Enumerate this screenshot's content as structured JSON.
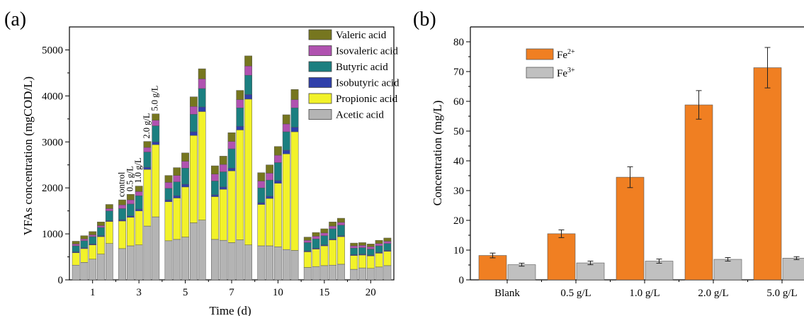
{
  "chart_data": [
    {
      "type": "bar",
      "stacked": true,
      "panel_label": "(a)",
      "xlabel": "Time (d)",
      "ylabel": "VFAs concentration (mgCOD/L)",
      "ylim": [
        0,
        5500
      ],
      "yticks": [
        0,
        1000,
        2000,
        3000,
        4000,
        5000
      ],
      "groups": [
        "1",
        "3",
        "5",
        "7",
        "10",
        "15",
        "20"
      ],
      "conditions": [
        "control",
        "0.5 g/L",
        "1.0 g/L",
        "2.0 g/L",
        "5.0 g/L"
      ],
      "annotated_group": "3",
      "legend_position": "top-right",
      "series": [
        {
          "name": "Acetic acid",
          "color": "#b4b4b4",
          "values": [
            [
              320,
              380,
              450,
              560,
              790
            ],
            [
              680,
              740,
              760,
              1170,
              1370
            ],
            [
              850,
              880,
              930,
              1240,
              1300
            ],
            [
              880,
              860,
              810,
              870,
              760
            ],
            [
              740,
              740,
              720,
              660,
              640
            ],
            [
              270,
              290,
              310,
              320,
              340
            ],
            [
              230,
              260,
              250,
              280,
              310
            ]
          ]
        },
        {
          "name": "Propionic acid",
          "color": "#f2f22a",
          "values": [
            [
              270,
              300,
              310,
              380,
              480
            ],
            [
              600,
              620,
              740,
              1230,
              1570
            ],
            [
              850,
              900,
              1090,
              1900,
              2360
            ],
            [
              930,
              1110,
              1560,
              2390,
              3170
            ],
            [
              900,
              1030,
              1380,
              2080,
              2580
            ],
            [
              340,
              380,
              430,
              550,
              600
            ],
            [
              300,
              280,
              270,
              300,
              310
            ]
          ]
        },
        {
          "name": "Isobutyric acid",
          "color": "#2f3faa",
          "values": [
            [
              20,
              20,
              20,
              20,
              20
            ],
            [
              30,
              30,
              40,
              50,
              60
            ],
            [
              40,
              50,
              60,
              80,
              100
            ],
            [
              40,
              50,
              60,
              80,
              100
            ],
            [
              40,
              50,
              60,
              80,
              100
            ],
            [
              20,
              20,
              20,
              20,
              20
            ],
            [
              20,
              20,
              20,
              20,
              20
            ]
          ]
        },
        {
          "name": "Butyric acid",
          "color": "#1b7f80",
          "values": [
            [
              130,
              150,
              160,
              180,
              210
            ],
            [
              240,
              260,
              290,
              330,
              350
            ],
            [
              250,
              300,
              350,
              380,
              400
            ],
            [
              300,
              330,
              420,
              400,
              420
            ],
            [
              320,
              350,
              390,
              400,
              420
            ],
            [
              180,
              200,
              200,
              220,
              230
            ],
            [
              140,
              140,
              130,
              140,
              150
            ]
          ]
        },
        {
          "name": "Isovaleric acid",
          "color": "#b052b0",
          "values": [
            [
              40,
              40,
              40,
              40,
              50
            ],
            [
              80,
              90,
              90,
              100,
              120
            ],
            [
              130,
              140,
              150,
              170,
              210
            ],
            [
              150,
              160,
              160,
              180,
              200
            ],
            [
              150,
              150,
              160,
              170,
              180
            ],
            [
              50,
              60,
              60,
              60,
              60
            ],
            [
              50,
              50,
              50,
              50,
              50
            ]
          ]
        },
        {
          "name": "Valeric acid",
          "color": "#76761f",
          "values": [
            [
              60,
              70,
              70,
              80,
              90
            ],
            [
              110,
              120,
              120,
              130,
              140
            ],
            [
              150,
              170,
              180,
              210,
              220
            ],
            [
              180,
              180,
              190,
              200,
              220
            ],
            [
              180,
              180,
              190,
              200,
              220
            ],
            [
              70,
              80,
              90,
              90,
              90
            ],
            [
              60,
              60,
              60,
              70,
              70
            ]
          ]
        }
      ]
    },
    {
      "type": "bar",
      "panel_label": "(b)",
      "xlabel": "",
      "ylabel": "Concentration (mg/L)",
      "ylim": [
        0,
        85
      ],
      "yticks": [
        0,
        10,
        20,
        30,
        40,
        50,
        60,
        70,
        80
      ],
      "categories": [
        "Blank",
        "0.5 g/L",
        "1.0 g/L",
        "2.0 g/L",
        "5.0 g/L"
      ],
      "legend_position": "top-left",
      "series": [
        {
          "name": "Fe",
          "superscript": "2+",
          "color": "#f07f22",
          "values": [
            8.2,
            15.5,
            34.5,
            58.8,
            71.3
          ],
          "errors": [
            0.8,
            1.3,
            3.5,
            4.8,
            6.8
          ]
        },
        {
          "name": "Fe",
          "superscript": "3+",
          "color": "#c0c0c0",
          "values": [
            5.1,
            5.7,
            6.3,
            6.9,
            7.3
          ],
          "errors": [
            0.5,
            0.6,
            0.7,
            0.6,
            0.5
          ]
        }
      ]
    }
  ]
}
